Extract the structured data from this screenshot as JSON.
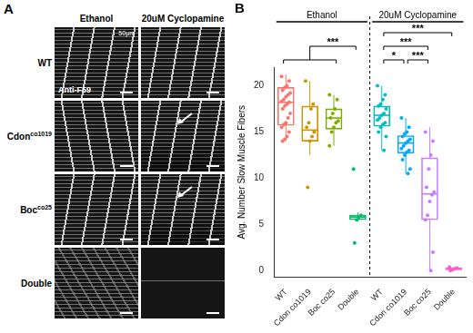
{
  "panel_a": {
    "label": "A",
    "columns": [
      "Ethanol",
      "20uM Cyclopamine"
    ],
    "rows": [
      "WT",
      "Cdon co1019",
      "Boc co25",
      "Double"
    ],
    "stain": "Anti-F59",
    "scale_bar": "50µm"
  },
  "chart_data": {
    "type": "box",
    "panel_label": "B",
    "y_label": "Avg. Number Slow Muscle Fibers",
    "ylim": [
      -0.7,
      22
    ],
    "yticks": [
      0,
      5,
      10,
      15,
      20
    ],
    "grid": false,
    "groups": [
      {
        "name": "Ethanol",
        "boxes": [
          {
            "category": "WT",
            "color": "#F8766D",
            "whisker_low": 14,
            "q1": 15.7,
            "median": 18.2,
            "q3": 19.8,
            "whisker_high": 21.2,
            "points": [
              21,
              20.5,
              20,
              19.8,
              19.5,
              19.2,
              19,
              18.8,
              18.5,
              18.3,
              18.2,
              18,
              17.8,
              17.5,
              17,
              16.5,
              16,
              15.8,
              15.5,
              15,
              14.5,
              14.2,
              14
            ]
          },
          {
            "category": "Cdon co1019",
            "color": "#CD9600",
            "whisker_low": 12.5,
            "q1": 14,
            "median": 15.2,
            "q3": 17.8,
            "whisker_high": 20.5,
            "points": [
              20.5,
              18,
              17.5,
              16,
              15.5,
              15,
              14.5,
              14,
              9
            ]
          },
          {
            "category": "Boc co25",
            "color": "#7CAE00",
            "whisker_low": 13.5,
            "q1": 15.3,
            "median": 16.5,
            "q3": 17.5,
            "whisker_high": 19,
            "points": [
              19,
              18.5,
              17.5,
              17,
              16.5,
              16.2,
              16,
              15.5,
              15,
              13.5
            ]
          },
          {
            "category": "Double",
            "color": "#00BE67",
            "whisker_low": 5.3,
            "q1": 5.5,
            "median": 5.8,
            "q3": 6,
            "whisker_high": 6.3,
            "points": [
              11,
              6,
              5.8,
              5.5,
              3
            ]
          }
        ],
        "comparisons": [
          {
            "from": [
              "WT",
              "Cdon co1019",
              "Boc co25"
            ],
            "to": [
              "Double"
            ],
            "label": "***"
          }
        ]
      },
      {
        "name": "20uM Cyclopamine",
        "boxes": [
          {
            "category": "WT",
            "color": "#00BFC4",
            "whisker_low": 13,
            "q1": 15.6,
            "median": 16.8,
            "q3": 17.8,
            "whisker_high": 20,
            "points": [
              20,
              19,
              18.5,
              18,
              17.8,
              17.5,
              17,
              16.8,
              16.5,
              16.3,
              16,
              15.8,
              15.5,
              15,
              14.5,
              13
            ]
          },
          {
            "category": "Cdon co1019",
            "color": "#00A9FF",
            "whisker_low": 10.5,
            "q1": 12.7,
            "median": 13.8,
            "q3": 14.6,
            "whisker_high": 16.5,
            "points": [
              16.5,
              15.5,
              15,
              14.8,
              14.5,
              14.2,
              14,
              13.8,
              13.5,
              13.2,
              13,
              12.8,
              12.5,
              12,
              11,
              10.5
            ]
          },
          {
            "category": "Boc co25",
            "color": "#C77CFF",
            "whisker_low": 0,
            "q1": 5.5,
            "median": 8.3,
            "q3": 12.2,
            "whisker_high": 15.5,
            "points": [
              15,
              14,
              12.5,
              11,
              9,
              8.5,
              8.2,
              7.5,
              6,
              5.5,
              2,
              0
            ]
          },
          {
            "category": "Double",
            "color": "#FF61CC",
            "whisker_low": 0,
            "q1": 0.1,
            "median": 0.2,
            "q3": 0.3,
            "whisker_high": 0.4,
            "points": [
              0.4,
              0.3,
              0.2,
              0.1,
              0
            ]
          }
        ],
        "comparisons": [
          {
            "from": [
              "WT"
            ],
            "to": [
              "Cdon co1019"
            ],
            "label": "*"
          },
          {
            "from": [
              "Cdon co1019"
            ],
            "to": [
              "Boc co25"
            ],
            "label": "***"
          },
          {
            "from": [
              "WT"
            ],
            "to": [
              "Boc co25"
            ],
            "label": "***"
          },
          {
            "from": [
              "WT"
            ],
            "to": [
              "Double"
            ],
            "label": "***"
          }
        ]
      }
    ]
  }
}
